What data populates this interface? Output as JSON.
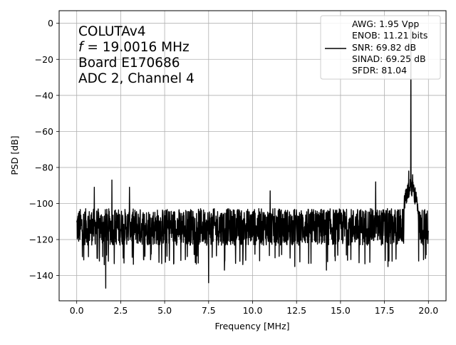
{
  "chart_data": {
    "type": "line",
    "xlabel": "Frequency [MHz]",
    "ylabel": "PSD [dB]",
    "xlim": [
      -1,
      21
    ],
    "ylim": [
      -154,
      7
    ],
    "grid": true,
    "xticks": [
      0.0,
      2.5,
      5.0,
      7.5,
      10.0,
      12.5,
      15.0,
      17.5,
      20.0
    ],
    "xtick_labels": [
      "0.0",
      "2.5",
      "5.0",
      "7.5",
      "10.0",
      "12.5",
      "15.0",
      "17.5",
      "20.0"
    ],
    "yticks": [
      0,
      -20,
      -40,
      -60,
      -80,
      -100,
      -120,
      -140
    ],
    "ytick_labels": [
      "0",
      "−20",
      "−40",
      "−60",
      "−80",
      "−100",
      "−120",
      "−140"
    ],
    "annotation_lines": [
      {
        "prefix": "",
        "italic": "",
        "text": "COLUTAv4"
      },
      {
        "prefix": "",
        "italic": "f",
        "text": " = 19.0016 MHz"
      },
      {
        "prefix": "",
        "italic": "",
        "text": "Board E170686"
      },
      {
        "prefix": "",
        "italic": "",
        "text": "ADC 2, Channel 4"
      }
    ],
    "legend": {
      "placement": "upper right",
      "lines": [
        "AWG: 1.95 Vpp",
        "ENOB: 11.21 bits",
        "SNR: 69.82 dB",
        "SINAD: 69.25 dB",
        "SFDR: 81.04"
      ]
    },
    "series": [
      {
        "color": "#000000",
        "noise_floor_db": -113,
        "noise_range_db": [
          -128,
          -104
        ],
        "deep_dips": [
          {
            "x": 1.65,
            "y": -147
          },
          {
            "x": 3.0,
            "y": -137
          },
          {
            "x": 7.5,
            "y": -144
          },
          {
            "x": 8.4,
            "y": -137
          },
          {
            "x": 12.4,
            "y": -135
          },
          {
            "x": 14.2,
            "y": -137
          },
          {
            "x": 17.7,
            "y": -135
          }
        ],
        "spurs": [
          {
            "x": 1.0,
            "y": -91
          },
          {
            "x": 2.0,
            "y": -87
          },
          {
            "x": 3.0,
            "y": -91
          },
          {
            "x": 11.0,
            "y": -93
          },
          {
            "x": 17.0,
            "y": -88
          },
          {
            "x": 18.88,
            "y": -82
          },
          {
            "x": 19.0016,
            "y": 0
          },
          {
            "x": 19.1,
            "y": -84
          }
        ],
        "fundamental": {
          "x": 19.0016,
          "y": 0
        }
      }
    ]
  }
}
